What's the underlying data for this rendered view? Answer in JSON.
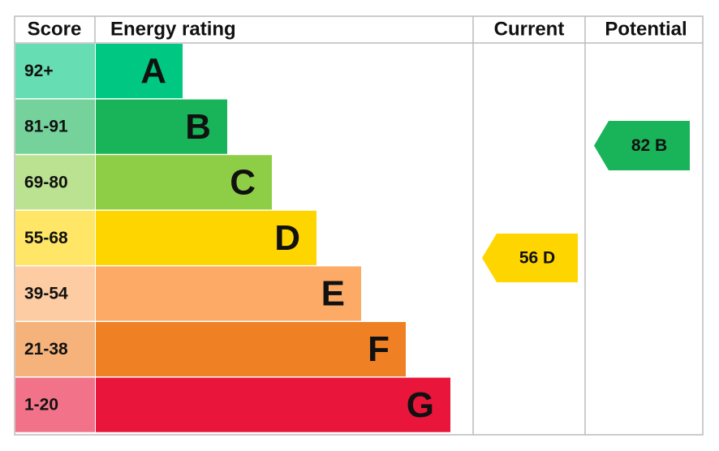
{
  "header": {
    "score": "Score",
    "energy_rating": "Energy rating",
    "current": "Current",
    "potential": "Potential"
  },
  "bands": [
    {
      "score": "92+",
      "letter": "A",
      "color": "#00c781"
    },
    {
      "score": "81-91",
      "letter": "B",
      "color": "#19b459"
    },
    {
      "score": "69-80",
      "letter": "C",
      "color": "#8dce46"
    },
    {
      "score": "55-68",
      "letter": "D",
      "color": "#ffd500"
    },
    {
      "score": "39-54",
      "letter": "E",
      "color": "#fcaa65"
    },
    {
      "score": "21-38",
      "letter": "F",
      "color": "#ef8023"
    },
    {
      "score": "1-20",
      "letter": "G",
      "color": "#e9153b"
    }
  ],
  "current": {
    "label": "56 D",
    "color": "#ffd500"
  },
  "potential": {
    "label": "82 B",
    "color": "#19b459"
  }
}
